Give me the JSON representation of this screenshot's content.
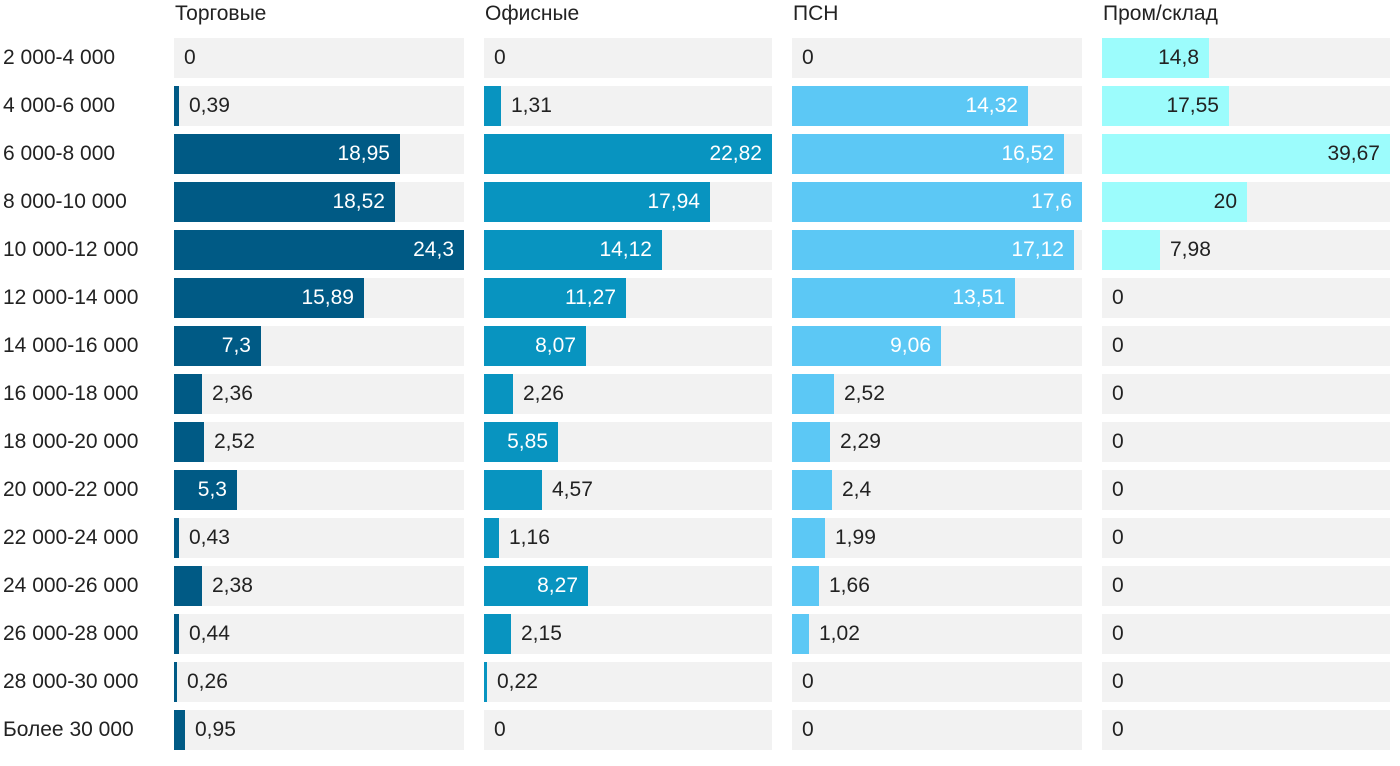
{
  "chart_data": {
    "type": "bar",
    "orientation": "horizontal",
    "layout": "small-multiples",
    "categories": [
      "2 000-4 000",
      "4 000-6 000",
      "6 000-8 000",
      "8 000-10 000",
      "10 000-12 000",
      "12 000-14 000",
      "14 000-16 000",
      "16 000-18 000",
      "18 000-20 000",
      "20 000-22 000",
      "22 000-24 000",
      "24 000-26 000",
      "26 000-28 000",
      "28 000-30 000",
      "Более 30 000"
    ],
    "series": [
      {
        "name": "Торговые",
        "color": "#005a85",
        "values": [
          0,
          0.39,
          18.95,
          18.52,
          24.3,
          15.89,
          7.3,
          2.36,
          2.52,
          5.3,
          0.43,
          2.38,
          0.44,
          0.26,
          0.95
        ],
        "labels": [
          "0",
          "0,39",
          "18,95",
          "18,52",
          "24,3",
          "15,89",
          "7,3",
          "2,36",
          "2,52",
          "5,3",
          "0,43",
          "2,38",
          "0,44",
          "0,26",
          "0,95"
        ],
        "max": 24.3
      },
      {
        "name": "Офисные",
        "color": "#0894c0",
        "values": [
          0,
          1.31,
          22.82,
          17.94,
          14.12,
          11.27,
          8.07,
          2.26,
          5.85,
          4.57,
          1.16,
          8.27,
          2.15,
          0.22,
          0
        ],
        "labels": [
          "0",
          "1,31",
          "22,82",
          "17,94",
          "14,12",
          "11,27",
          "8,07",
          "2,26",
          "5,85",
          "4,57",
          "1,16",
          "8,27",
          "2,15",
          "0,22",
          "0"
        ],
        "max": 22.82
      },
      {
        "name": "ПСН",
        "color": "#5cc8f5",
        "values": [
          0,
          14.32,
          16.52,
          17.6,
          17.12,
          13.51,
          9.06,
          2.52,
          2.29,
          2.4,
          1.99,
          1.66,
          1.02,
          0,
          0
        ],
        "labels": [
          "0",
          "14,32",
          "16,52",
          "17,6",
          "17,12",
          "13,51",
          "9,06",
          "2,52",
          "2,29",
          "2,4",
          "1,99",
          "1,66",
          "1,02",
          "0",
          "0"
        ],
        "max": 17.6
      },
      {
        "name": "Пром/склад",
        "color": "#9cfcfc",
        "values": [
          14.8,
          17.55,
          39.67,
          20,
          7.98,
          0,
          0,
          0,
          0,
          0,
          0,
          0,
          0,
          0,
          0
        ],
        "labels": [
          "14,8",
          "17,55",
          "39,67",
          "20",
          "7,98",
          "0",
          "0",
          "0",
          "0",
          "0",
          "0",
          "0",
          "0",
          "0",
          "0"
        ],
        "max": 39.67
      }
    ],
    "legend": "none",
    "grid": false
  }
}
